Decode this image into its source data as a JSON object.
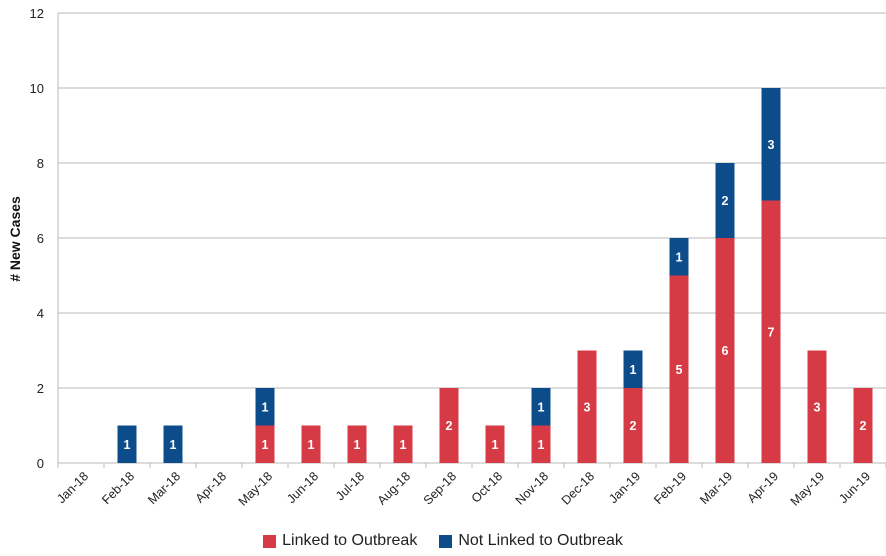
{
  "chart_data": {
    "type": "bar",
    "stacked": true,
    "title": "",
    "xlabel": "",
    "ylabel": "# New Cases",
    "ylim": [
      0,
      12
    ],
    "yticks": [
      0,
      2,
      4,
      6,
      8,
      10,
      12
    ],
    "grid": true,
    "legend_position": "bottom",
    "categories": [
      "Jan-18",
      "Feb-18",
      "Mar-18",
      "Apr-18",
      "May-18",
      "Jun-18",
      "Jul-18",
      "Aug-18",
      "Sep-18",
      "Oct-18",
      "Nov-18",
      "Dec-18",
      "Jan-19",
      "Feb-19",
      "Mar-19",
      "Apr-19",
      "May-19",
      "Jun-19"
    ],
    "series": [
      {
        "name": "Linked to Outbreak",
        "color": "#d63a45",
        "values": [
          0,
          0,
          0,
          0,
          1,
          1,
          1,
          1,
          2,
          1,
          1,
          3,
          2,
          5,
          6,
          7,
          3,
          2
        ]
      },
      {
        "name": "Not Linked to Outbreak",
        "color": "#0c4c8a",
        "values": [
          0,
          1,
          1,
          0,
          1,
          0,
          0,
          0,
          0,
          0,
          1,
          0,
          1,
          1,
          2,
          3,
          0,
          0
        ]
      }
    ]
  }
}
